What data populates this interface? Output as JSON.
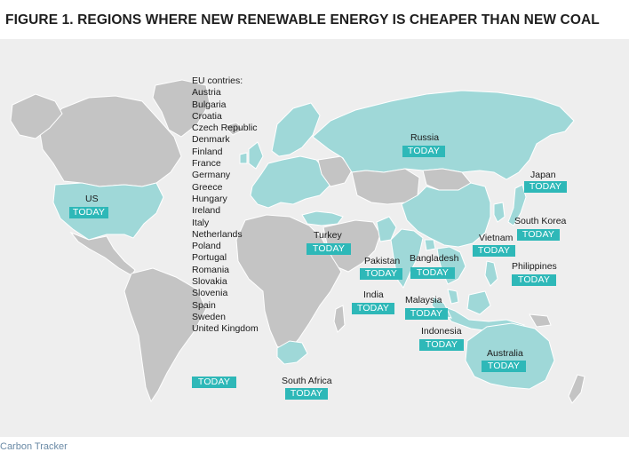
{
  "title": "FIGURE 1. REGIONS WHERE NEW RENEWABLE ENERGY IS CHEAPER THAN NEW COAL",
  "colors": {
    "highlight": "#9fd8d8",
    "land": "#c4c4c4",
    "badge": "#2eb8b8",
    "background": "#eeeeee"
  },
  "eu": {
    "heading": "EU contries:",
    "countries": [
      "Austria",
      "Bulgaria",
      "Croatia",
      "Czech Republic",
      "Denmark",
      "Finland",
      "France",
      "Germany",
      "Greece",
      "Hungary",
      "Ireland",
      "Italy",
      "Netherlands",
      "Poland",
      "Portugal",
      "Romania",
      "Slovakia",
      "Slovenia",
      "Spain",
      "Sweden",
      "United Kingdom"
    ],
    "badge": "TODAY"
  },
  "regions": {
    "us": {
      "name": "US",
      "badge": "TODAY"
    },
    "russia": {
      "name": "Russia",
      "badge": "TODAY"
    },
    "japan": {
      "name": "Japan",
      "badge": "TODAY"
    },
    "south_korea": {
      "name": "South Korea",
      "badge": "TODAY"
    },
    "vietnam": {
      "name": "Vietnam",
      "badge": "TODAY"
    },
    "philippines": {
      "name": "Philippines",
      "badge": "TODAY"
    },
    "turkey": {
      "name": "Turkey",
      "badge": "TODAY"
    },
    "pakistan": {
      "name": "Pakistan",
      "badge": "TODAY"
    },
    "bangladesh": {
      "name": "Bangladesh",
      "badge": "TODAY"
    },
    "india": {
      "name": "India",
      "badge": "TODAY"
    },
    "malaysia": {
      "name": "Malaysia",
      "badge": "TODAY"
    },
    "indonesia": {
      "name": "Indonesia",
      "badge": "TODAY"
    },
    "australia": {
      "name": "Australia",
      "badge": "TODAY"
    },
    "south_africa": {
      "name": "South Africa",
      "badge": "TODAY"
    }
  },
  "source": "Carbon Tracker"
}
